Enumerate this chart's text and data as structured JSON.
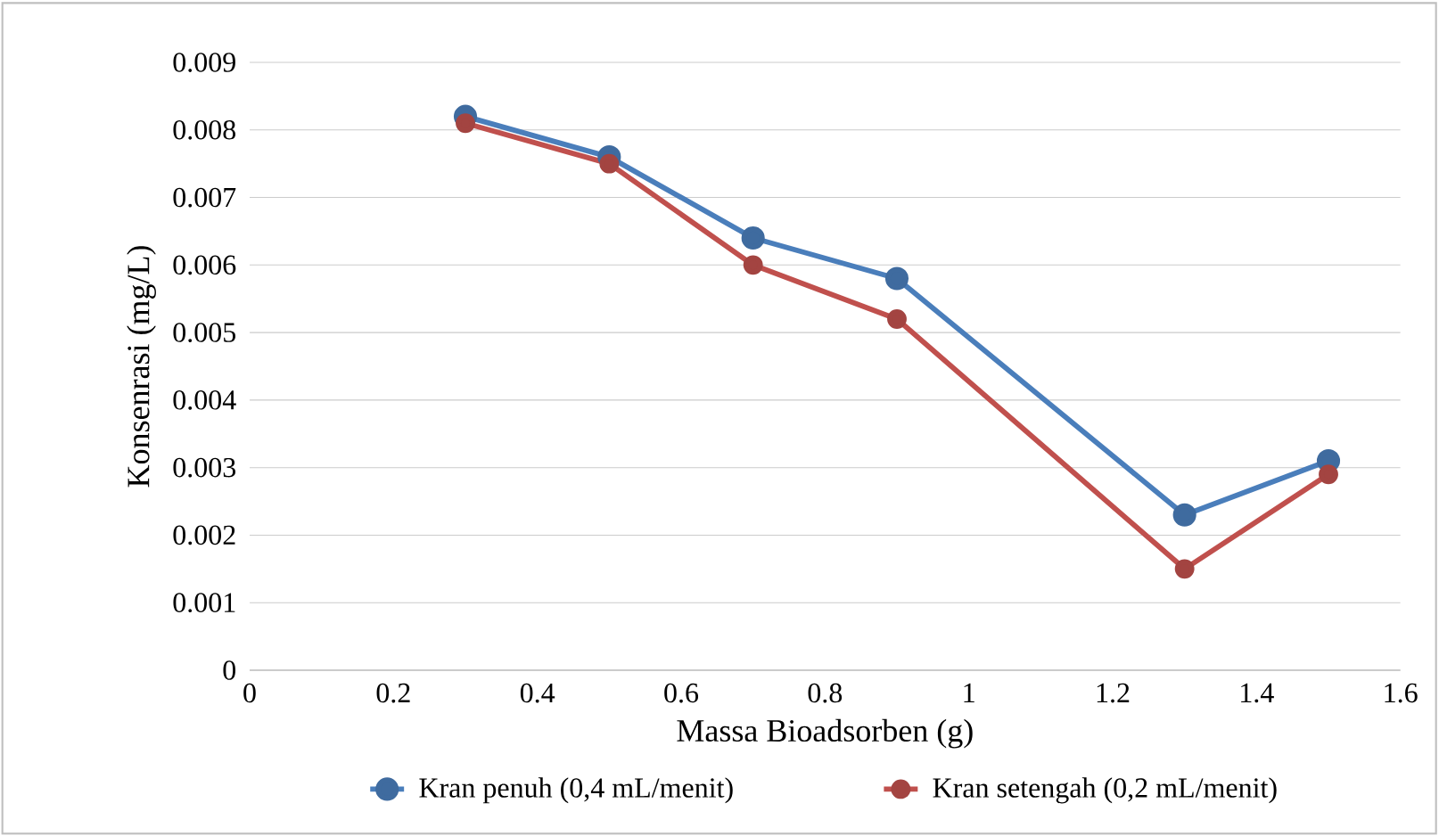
{
  "chart_data": {
    "type": "line",
    "xlabel": "Massa Bioadsorben (g)",
    "ylabel": "Konsenrasi (mg/L)",
    "x": [
      0.3,
      0.5,
      0.7,
      0.9,
      1.3,
      1.5
    ],
    "series": [
      {
        "name": "Kran penuh (0,4 mL/menit)",
        "color": "#4a7ebb",
        "values": [
          0.0082,
          0.0076,
          0.0064,
          0.0058,
          0.0023,
          0.0031
        ]
      },
      {
        "name": "Kran setengah (0,2 mL/menit)",
        "color": "#c0504d",
        "values": [
          0.0081,
          0.0075,
          0.006,
          0.0052,
          0.0015,
          0.0029
        ]
      }
    ],
    "xlim": [
      0,
      1.6
    ],
    "xticks": [
      0,
      0.2,
      0.4,
      0.6,
      0.8,
      1,
      1.2,
      1.4,
      1.6
    ],
    "ylim": [
      0,
      0.009
    ],
    "yticks": [
      0,
      0.001,
      0.002,
      0.003,
      0.004,
      0.005,
      0.006,
      0.007,
      0.008,
      0.009
    ],
    "grid": "y",
    "legend": "bottom",
    "marker": "circle",
    "line_style": "solid"
  }
}
